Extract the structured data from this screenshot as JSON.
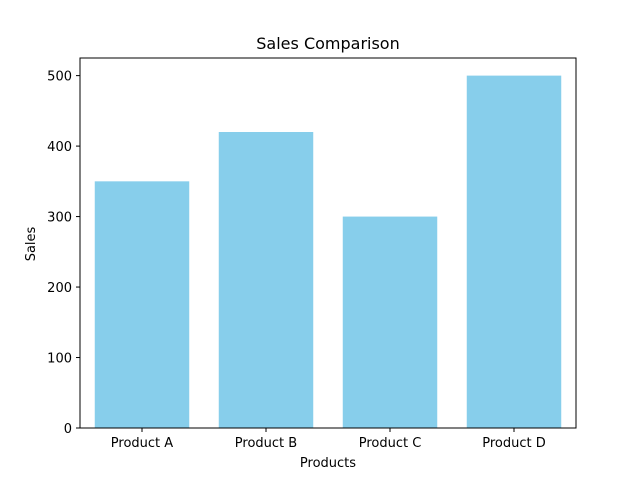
{
  "chart_data": {
    "type": "bar",
    "title": "Sales Comparison",
    "xlabel": "Products",
    "ylabel": "Sales",
    "categories": [
      "Product A",
      "Product B",
      "Product C",
      "Product D"
    ],
    "values": [
      350,
      420,
      300,
      500
    ],
    "ylim": [
      0,
      525
    ],
    "yticks": [
      0,
      100,
      200,
      300,
      400,
      500
    ],
    "grid": false,
    "colors": {
      "bar": "#87CEEB",
      "axis": "#000000",
      "background": "#ffffff"
    }
  }
}
